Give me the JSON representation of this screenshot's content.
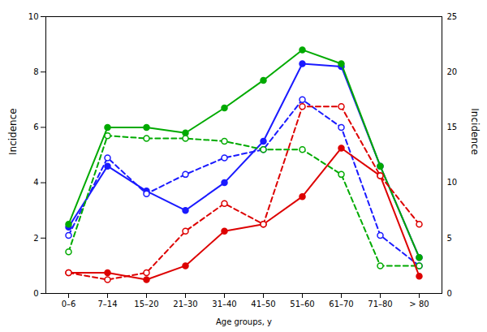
{
  "chart_data": {
    "type": "line",
    "categories": [
      "0–6",
      "7–14",
      "15–20",
      "21–30",
      "31–40",
      "41–50",
      "51–60",
      "61–70",
      "71–80",
      "> 80"
    ],
    "series": [
      {
        "color": "#1a1aff",
        "line_style": "solid",
        "marker": "circle",
        "values": [
          2.4,
          4.6,
          3.7,
          3.0,
          4.0,
          5.5,
          8.3,
          8.2,
          4.6,
          1.3
        ]
      },
      {
        "color": "#1a1aff",
        "line_style": "dashed",
        "marker": "open_circle",
        "values": [
          2.1,
          4.9,
          3.6,
          4.3,
          4.9,
          5.2,
          7.0,
          6.0,
          2.1,
          1.0
        ]
      },
      {
        "color": "#00aa00",
        "line_style": "solid",
        "marker": "circle",
        "values": [
          2.5,
          6.0,
          6.0,
          5.8,
          6.7,
          7.7,
          8.8,
          8.3,
          4.6,
          1.3
        ]
      },
      {
        "color": "#00aa00",
        "line_style": "dashed",
        "marker": "open_circle",
        "values": [
          1.5,
          5.7,
          5.6,
          5.6,
          5.5,
          5.2,
          5.2,
          4.3,
          1.0,
          1.0
        ]
      },
      {
        "color": "#dd0000",
        "line_style": "solid",
        "marker": "circle",
        "values": [
          0.75,
          0.75,
          0.5,
          1.0,
          2.25,
          2.5,
          3.5,
          5.25,
          4.25,
          0.625
        ]
      },
      {
        "color": "#dd0000",
        "line_style": "dashed",
        "marker": "open_circle",
        "values": [
          0.75,
          0.5,
          0.75,
          2.25,
          3.25,
          2.5,
          6.75,
          6.75,
          4.25,
          2.5
        ]
      }
    ],
    "xlabel": "Age groups, y",
    "ylabel": "Incidence",
    "y2label": "Incidence",
    "ylim": [
      0,
      10
    ],
    "yticks": [
      0,
      2,
      4,
      6,
      8,
      10
    ],
    "y2lim": [
      0,
      25
    ],
    "y2ticks": [
      0,
      5,
      10,
      15,
      20,
      25
    ]
  }
}
